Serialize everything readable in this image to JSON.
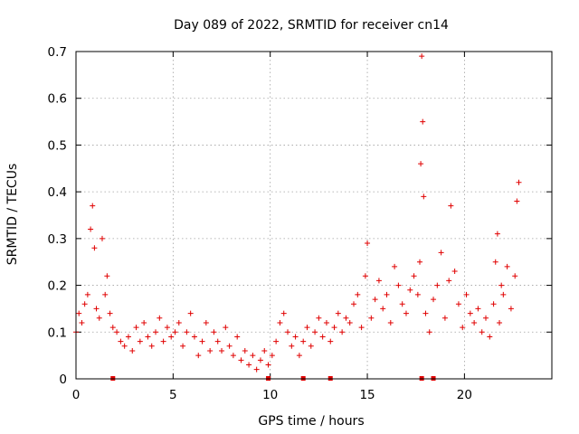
{
  "chart_data": {
    "type": "scatter",
    "title": "Day 089 of 2022, SRMTID for receiver cn14",
    "xlabel": "GPS time / hours",
    "ylabel": "SRMTID / TECUs",
    "xlim": [
      0,
      24.5
    ],
    "ylim": [
      0,
      0.7
    ],
    "xticks": [
      0,
      5,
      10,
      15,
      20
    ],
    "xtick_labels": [
      "0",
      "5",
      "10",
      "15",
      "20"
    ],
    "yticks": [
      0,
      0.1,
      0.2,
      0.3,
      0.4,
      0.5,
      0.6,
      0.7
    ],
    "ytick_labels": [
      "0",
      "0.1",
      "0.2",
      "0.3",
      "0.4",
      "0.5",
      "0.6",
      "0.7"
    ],
    "grid": true,
    "marker": "+",
    "color": "#e00000",
    "zero_value_times": [
      1.9,
      9.9,
      11.7,
      13.1,
      17.8,
      18.4
    ],
    "series": [
      {
        "name": "SRMTID",
        "x": [
          0.0,
          0.15,
          0.3,
          0.45,
          0.6,
          0.75,
          0.85,
          0.95,
          1.05,
          1.2,
          1.35,
          1.5,
          1.6,
          1.75,
          1.9,
          2.1,
          2.3,
          2.5,
          2.7,
          2.9,
          3.1,
          3.3,
          3.5,
          3.7,
          3.9,
          4.1,
          4.3,
          4.5,
          4.7,
          4.9,
          5.1,
          5.3,
          5.5,
          5.7,
          5.9,
          6.1,
          6.3,
          6.5,
          6.7,
          6.9,
          7.1,
          7.3,
          7.5,
          7.7,
          7.9,
          8.1,
          8.3,
          8.5,
          8.7,
          8.9,
          9.1,
          9.3,
          9.5,
          9.7,
          9.9,
          10.1,
          10.3,
          10.5,
          10.7,
          10.9,
          11.1,
          11.3,
          11.5,
          11.7,
          11.9,
          12.1,
          12.3,
          12.5,
          12.7,
          12.9,
          13.1,
          13.3,
          13.5,
          13.7,
          13.9,
          14.1,
          14.3,
          14.5,
          14.7,
          14.9,
          15.0,
          15.2,
          15.4,
          15.6,
          15.8,
          16.0,
          16.2,
          16.4,
          16.6,
          16.8,
          17.0,
          17.2,
          17.4,
          17.6,
          17.7,
          17.75,
          17.8,
          17.85,
          17.9,
          18.0,
          18.2,
          18.4,
          18.6,
          18.8,
          19.0,
          19.2,
          19.3,
          19.5,
          19.7,
          19.9,
          20.1,
          20.3,
          20.5,
          20.7,
          20.9,
          21.1,
          21.3,
          21.5,
          21.6,
          21.7,
          21.8,
          21.9,
          22.0,
          22.2,
          22.4,
          22.6,
          22.7,
          22.8
        ],
        "y": [
          0.1,
          0.14,
          0.12,
          0.16,
          0.18,
          0.32,
          0.37,
          0.28,
          0.15,
          0.13,
          0.3,
          0.18,
          0.22,
          0.14,
          0.11,
          0.1,
          0.08,
          0.07,
          0.09,
          0.06,
          0.11,
          0.08,
          0.12,
          0.09,
          0.07,
          0.1,
          0.13,
          0.08,
          0.11,
          0.09,
          0.1,
          0.12,
          0.07,
          0.1,
          0.14,
          0.09,
          0.05,
          0.08,
          0.12,
          0.06,
          0.1,
          0.08,
          0.06,
          0.11,
          0.07,
          0.05,
          0.09,
          0.04,
          0.06,
          0.03,
          0.05,
          0.02,
          0.04,
          0.06,
          0.03,
          0.05,
          0.08,
          0.12,
          0.14,
          0.1,
          0.07,
          0.09,
          0.05,
          0.08,
          0.11,
          0.07,
          0.1,
          0.13,
          0.09,
          0.12,
          0.08,
          0.11,
          0.14,
          0.1,
          0.13,
          0.12,
          0.16,
          0.18,
          0.11,
          0.22,
          0.29,
          0.13,
          0.17,
          0.21,
          0.15,
          0.18,
          0.12,
          0.24,
          0.2,
          0.16,
          0.14,
          0.19,
          0.22,
          0.18,
          0.25,
          0.46,
          0.69,
          0.55,
          0.39,
          0.14,
          0.1,
          0.17,
          0.2,
          0.27,
          0.13,
          0.21,
          0.37,
          0.23,
          0.16,
          0.11,
          0.18,
          0.14,
          0.12,
          0.15,
          0.1,
          0.13,
          0.09,
          0.16,
          0.25,
          0.31,
          0.12,
          0.2,
          0.18,
          0.24,
          0.15,
          0.22,
          0.38,
          0.42
        ]
      }
    ]
  }
}
